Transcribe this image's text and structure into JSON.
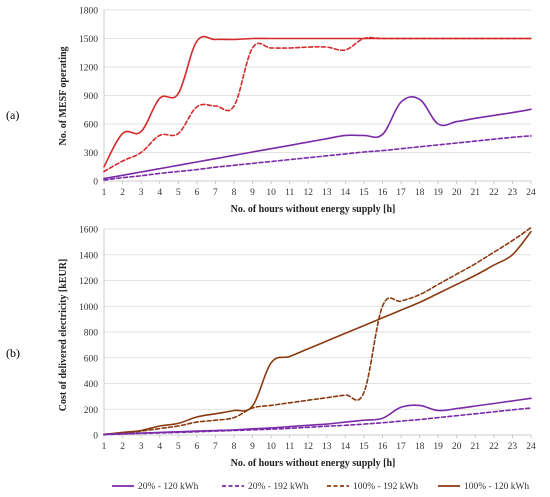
{
  "chart_data": [
    {
      "type": "line",
      "panel_label": "(a)",
      "title": "",
      "xlabel": "No. of hours without energy supply [h]",
      "ylabel": "No. of MESF operating",
      "x": [
        1,
        2,
        3,
        4,
        5,
        6,
        7,
        8,
        9,
        10,
        11,
        12,
        13,
        14,
        15,
        16,
        17,
        18,
        19,
        20,
        21,
        22,
        23,
        24
      ],
      "xlim": [
        1,
        24
      ],
      "ylim": [
        0,
        1800
      ],
      "yticks": [
        0,
        300,
        600,
        900,
        1200,
        1500,
        1800
      ],
      "grid": true,
      "series": [
        {
          "key": "s100_120",
          "color": "#d42a2a",
          "dash": false,
          "values": [
            150,
            500,
            520,
            870,
            920,
            1470,
            1490,
            1490,
            1500,
            1500,
            1500,
            1500,
            1500,
            1500,
            1500,
            1500,
            1500,
            1500,
            1500,
            1500,
            1500,
            1500,
            1500,
            1500
          ]
        },
        {
          "key": "s100_192",
          "color": "#d42a2a",
          "dash": true,
          "values": [
            100,
            210,
            300,
            480,
            500,
            780,
            790,
            790,
            1400,
            1400,
            1400,
            1410,
            1410,
            1380,
            1500,
            1500,
            1500,
            1500,
            1500,
            1500,
            1500,
            1500,
            1500,
            1500
          ]
        },
        {
          "key": "s20_120",
          "color": "#7a2aa8",
          "dash": false,
          "values": [
            25,
            60,
            95,
            130,
            165,
            200,
            235,
            270,
            305,
            340,
            375,
            410,
            445,
            480,
            480,
            490,
            830,
            860,
            600,
            625,
            660,
            690,
            720,
            755
          ]
        },
        {
          "key": "s20_192",
          "color": "#7a2aa8",
          "dash": true,
          "values": [
            10,
            35,
            55,
            80,
            100,
            120,
            145,
            165,
            185,
            205,
            225,
            245,
            265,
            285,
            305,
            320,
            340,
            360,
            380,
            400,
            420,
            440,
            460,
            475
          ]
        }
      ]
    },
    {
      "type": "line",
      "panel_label": "(b)",
      "title": "",
      "xlabel": "No. of hours without energy supply [h]",
      "ylabel": "Cost of delivered electricity [kEUR]",
      "x": [
        1,
        2,
        3,
        4,
        5,
        6,
        7,
        8,
        9,
        10,
        11,
        12,
        13,
        14,
        15,
        16,
        17,
        18,
        19,
        20,
        21,
        22,
        23,
        24
      ],
      "xlim": [
        1,
        24
      ],
      "ylim": [
        0,
        1600
      ],
      "yticks": [
        0,
        200,
        400,
        600,
        800,
        1000,
        1200,
        1400,
        1600
      ],
      "grid": true,
      "series": [
        {
          "key": "s100_120",
          "color": "#8b3a0f",
          "dash": false,
          "values": [
            5,
            20,
            35,
            70,
            90,
            140,
            165,
            190,
            225,
            560,
            610,
            670,
            730,
            790,
            850,
            910,
            970,
            1030,
            1100,
            1170,
            1240,
            1320,
            1400,
            1580
          ]
        },
        {
          "key": "s100_192",
          "color": "#8b3a0f",
          "dash": true,
          "values": [
            5,
            15,
            30,
            50,
            70,
            100,
            115,
            135,
            210,
            230,
            250,
            270,
            290,
            310,
            330,
            1000,
            1040,
            1090,
            1170,
            1250,
            1330,
            1420,
            1510,
            1610
          ]
        },
        {
          "key": "s20_120",
          "color": "#7a2aa8",
          "dash": false,
          "values": [
            5,
            10,
            15,
            20,
            25,
            30,
            35,
            40,
            48,
            55,
            65,
            75,
            85,
            100,
            115,
            130,
            215,
            230,
            190,
            205,
            225,
            245,
            265,
            285
          ]
        },
        {
          "key": "s20_192",
          "color": "#7a2aa8",
          "dash": true,
          "values": [
            3,
            8,
            12,
            16,
            20,
            25,
            30,
            35,
            40,
            45,
            52,
            60,
            68,
            75,
            85,
            95,
            108,
            120,
            135,
            150,
            165,
            180,
            195,
            210
          ]
        }
      ]
    }
  ],
  "legend": {
    "placement": "bottom",
    "items": [
      {
        "label": "20% - 120 kWh",
        "color": "#7a2aa8",
        "dash": false
      },
      {
        "label": "20% - 192 kWh",
        "color": "#7a2aa8",
        "dash": true
      },
      {
        "label": "100% - 192 kWh",
        "color": "#8b3a0f",
        "dash": true
      },
      {
        "label": "100% - 120 kWh",
        "color": "#8b3a0f",
        "dash": false
      }
    ]
  }
}
